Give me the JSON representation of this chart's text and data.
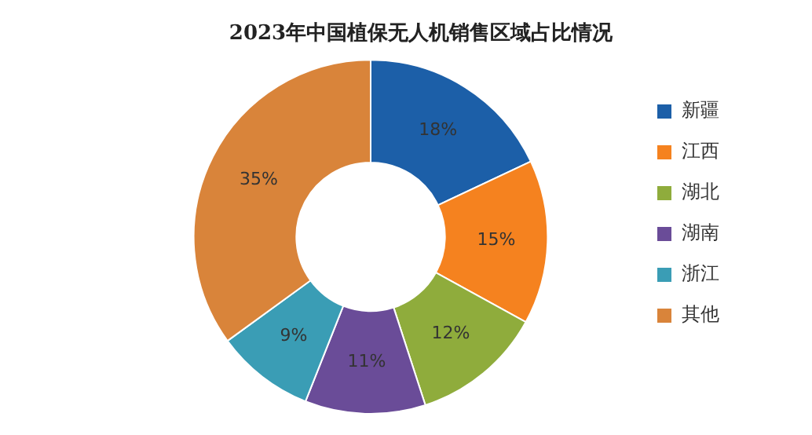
{
  "chart_data": {
    "type": "donut",
    "title": "2023年中国植保无人机销售区域占比情况",
    "categories": [
      "新疆",
      "江西",
      "湖北",
      "湖南",
      "浙江",
      "其他"
    ],
    "values": [
      18,
      15,
      12,
      11,
      9,
      35
    ],
    "value_labels": [
      "18%",
      "15%",
      "12%",
      "11%",
      "9%",
      "35%"
    ],
    "colors": [
      "#1c5fa8",
      "#f5821f",
      "#8fac3c",
      "#6a4c98",
      "#3a9db5",
      "#d9843a"
    ],
    "legend": "right"
  }
}
